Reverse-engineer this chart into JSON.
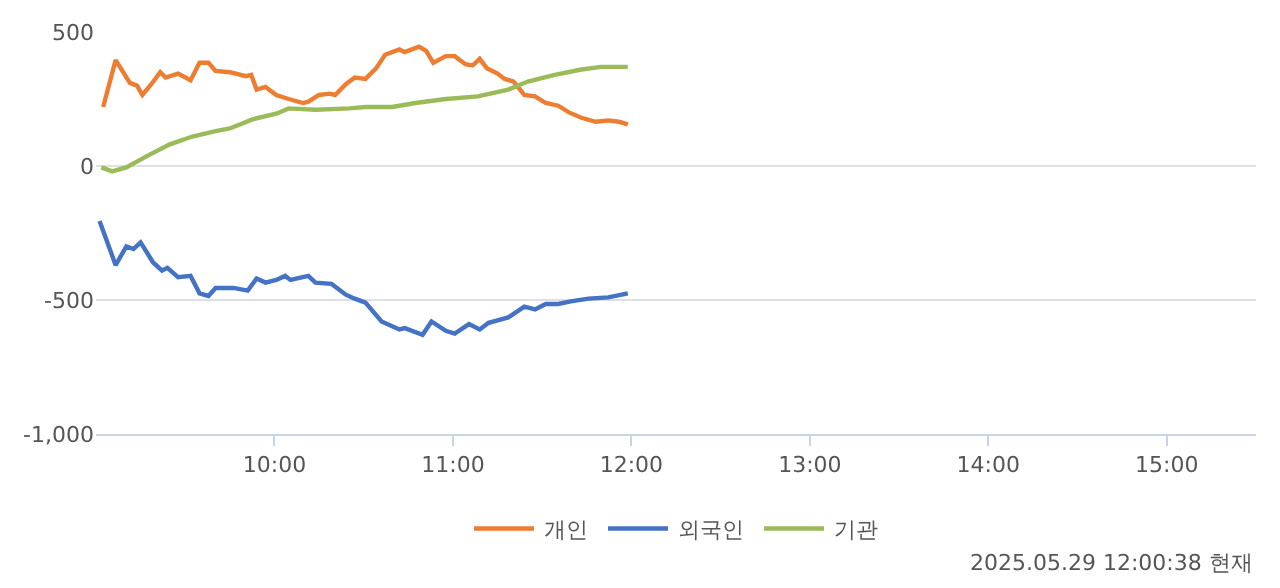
{
  "chart_data": {
    "type": "line",
    "series": [
      {
        "name": "개인",
        "color": "#ed7d31",
        "x": [
          9.04,
          9.11,
          9.19,
          9.23,
          9.26,
          9.31,
          9.36,
          9.39,
          9.46,
          9.53,
          9.58,
          9.63,
          9.67,
          9.75,
          9.84,
          9.87,
          9.9,
          9.95,
          10.01,
          10.08,
          10.16,
          10.19,
          10.25,
          10.31,
          10.34,
          10.4,
          10.45,
          10.51,
          10.57,
          10.62,
          10.7,
          10.73,
          10.81,
          10.85,
          10.89,
          10.96,
          11.01,
          11.07,
          11.11,
          11.15,
          11.19,
          11.25,
          11.29,
          11.34,
          11.4,
          11.46,
          11.52,
          11.59,
          11.65,
          11.72,
          11.8,
          11.87,
          11.93,
          11.98
        ],
        "values": [
          220,
          395,
          310,
          300,
          265,
          305,
          350,
          330,
          345,
          320,
          385,
          385,
          355,
          350,
          335,
          340,
          285,
          295,
          265,
          250,
          235,
          240,
          265,
          270,
          265,
          305,
          330,
          325,
          365,
          415,
          435,
          425,
          445,
          430,
          385,
          410,
          410,
          380,
          375,
          400,
          365,
          345,
          325,
          315,
          265,
          260,
          235,
          225,
          200,
          180,
          165,
          170,
          165,
          155
        ]
      },
      {
        "name": "외국인",
        "color": "#4472c4",
        "x": [
          9.02,
          9.11,
          9.17,
          9.21,
          9.25,
          9.32,
          9.37,
          9.4,
          9.46,
          9.53,
          9.58,
          9.63,
          9.67,
          9.77,
          9.85,
          9.9,
          9.95,
          10.01,
          10.06,
          10.09,
          10.19,
          10.23,
          10.32,
          10.4,
          10.45,
          10.51,
          10.6,
          10.7,
          10.73,
          10.83,
          10.88,
          10.96,
          11.01,
          11.09,
          11.15,
          11.2,
          11.31,
          11.4,
          11.46,
          11.52,
          11.59,
          11.66,
          11.76,
          11.87,
          11.98
        ],
        "values": [
          -205,
          -370,
          -300,
          -310,
          -285,
          -360,
          -390,
          -380,
          -415,
          -410,
          -475,
          -485,
          -455,
          -455,
          -465,
          -420,
          -435,
          -425,
          -410,
          -425,
          -410,
          -435,
          -440,
          -480,
          -495,
          -510,
          -580,
          -610,
          -605,
          -630,
          -580,
          -615,
          -625,
          -590,
          -610,
          -585,
          -565,
          -525,
          -535,
          -515,
          -515,
          -505,
          -495,
          -490,
          -475
        ]
      },
      {
        "name": "기관",
        "color": "#9bbb59",
        "x": [
          9.03,
          9.09,
          9.17,
          9.28,
          9.41,
          9.54,
          9.67,
          9.75,
          9.88,
          10.01,
          10.08,
          10.23,
          10.42,
          10.51,
          10.66,
          10.79,
          10.96,
          11.14,
          11.31,
          11.42,
          11.57,
          11.72,
          11.83,
          11.98
        ],
        "values": [
          -5,
          -20,
          -5,
          35,
          80,
          110,
          130,
          140,
          175,
          195,
          215,
          210,
          215,
          220,
          220,
          235,
          250,
          260,
          285,
          315,
          340,
          360,
          370,
          370
        ]
      }
    ],
    "xlim": [
      9,
      15.5
    ],
    "xticks": [
      {
        "value": 10,
        "label": "10:00"
      },
      {
        "value": 11,
        "label": "11:00"
      },
      {
        "value": 12,
        "label": "12:00"
      },
      {
        "value": 13,
        "label": "13:00"
      },
      {
        "value": 14,
        "label": "14:00"
      },
      {
        "value": 15,
        "label": "15:00"
      }
    ],
    "ylim": [
      -1000,
      500
    ],
    "yticks": [
      {
        "value": 500,
        "label": "500"
      },
      {
        "value": 0,
        "label": "0"
      },
      {
        "value": -500,
        "label": "-500"
      },
      {
        "value": -1000,
        "label": "-1,000"
      }
    ],
    "grid": "y",
    "legend": "bottom",
    "marker": "none",
    "line_style": "solid",
    "annotations": [
      "2025.05.29 12:00:38 현재"
    ]
  }
}
